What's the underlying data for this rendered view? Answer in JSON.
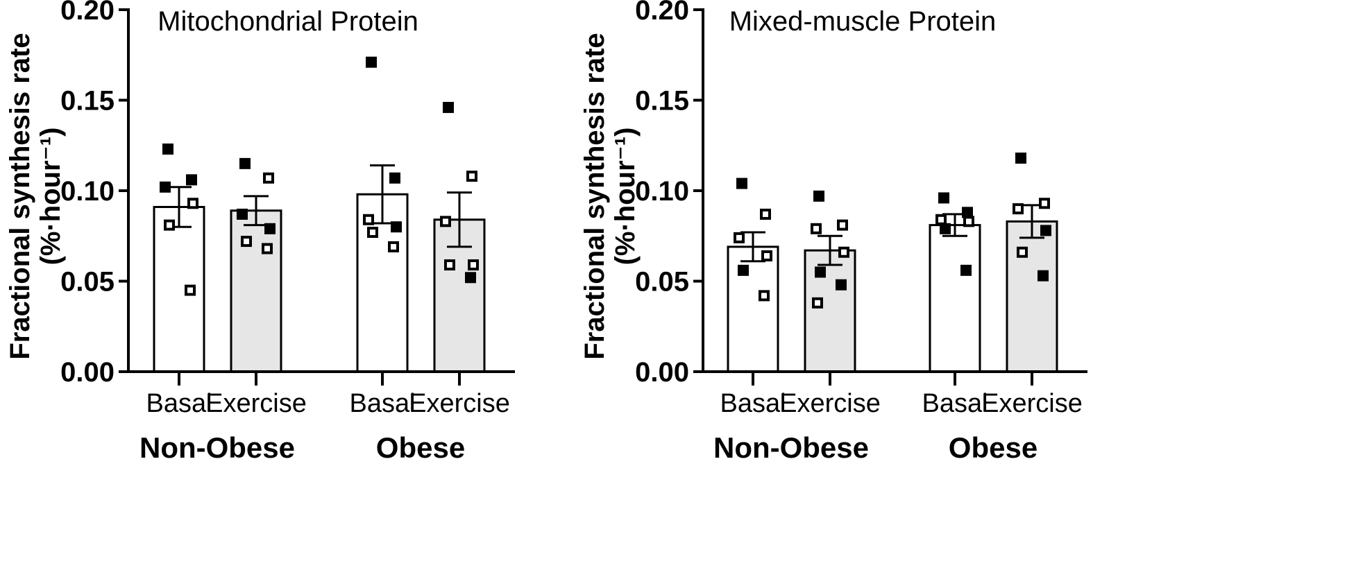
{
  "colors": {
    "basal_fill": "#ffffff",
    "exercise_fill": "#e6e6e6",
    "ink": "#000000"
  },
  "chart_data": [
    {
      "type": "bar",
      "title": "Mitochondrial Protein",
      "ylabel_line1": "Fractional synthesis rate",
      "ylabel_line2": "(%·hour⁻¹)",
      "ylim": [
        0,
        0.2
      ],
      "yticks": [
        "0.00",
        "0.05",
        "0.10",
        "0.15",
        "0.20"
      ],
      "groups": [
        {
          "label": "Non-Obese",
          "bars": [
            {
              "label": "Basal",
              "mean": 0.091,
              "sem": 0.011,
              "points_filled": [
                0.123,
                0.106,
                0.102
              ],
              "points_open": [
                0.093,
                0.081,
                0.045
              ]
            },
            {
              "label": "Exercise",
              "mean": 0.089,
              "sem": 0.008,
              "points_filled": [
                0.115,
                0.087,
                0.079
              ],
              "points_open": [
                0.107,
                0.072,
                0.068
              ]
            }
          ]
        },
        {
          "label": "Obese",
          "bars": [
            {
              "label": "Basal",
              "mean": 0.098,
              "sem": 0.016,
              "points_filled": [
                0.171,
                0.107,
                0.08
              ],
              "points_open": [
                0.084,
                0.077,
                0.069
              ]
            },
            {
              "label": "Exercise",
              "mean": 0.084,
              "sem": 0.015,
              "points_filled": [
                0.146,
                0.052
              ],
              "points_open": [
                0.108,
                0.083,
                0.059,
                0.059
              ]
            }
          ]
        }
      ]
    },
    {
      "type": "bar",
      "title": "Mixed-muscle Protein",
      "ylabel_line1": "Fractional synthesis rate",
      "ylabel_line2": "(%·hour⁻¹)",
      "ylim": [
        0,
        0.2
      ],
      "yticks": [
        "0.00",
        "0.05",
        "0.10",
        "0.15",
        "0.20"
      ],
      "groups": [
        {
          "label": "Non-Obese",
          "bars": [
            {
              "label": "Basal",
              "mean": 0.069,
              "sem": 0.008,
              "points_filled": [
                0.104,
                0.056
              ],
              "points_open": [
                0.087,
                0.074,
                0.064,
                0.042
              ]
            },
            {
              "label": "Exercise",
              "mean": 0.067,
              "sem": 0.008,
              "points_filled": [
                0.097,
                0.055,
                0.048
              ],
              "points_open": [
                0.081,
                0.079,
                0.066,
                0.038
              ]
            }
          ]
        },
        {
          "label": "Obese",
          "bars": [
            {
              "label": "Basal",
              "mean": 0.081,
              "sem": 0.006,
              "points_filled": [
                0.096,
                0.088,
                0.079,
                0.056
              ],
              "points_open": [
                0.083,
                0.084
              ]
            },
            {
              "label": "Exercise",
              "mean": 0.083,
              "sem": 0.009,
              "points_filled": [
                0.118,
                0.078,
                0.053
              ],
              "points_open": [
                0.093,
                0.09,
                0.066
              ]
            }
          ]
        }
      ]
    }
  ]
}
